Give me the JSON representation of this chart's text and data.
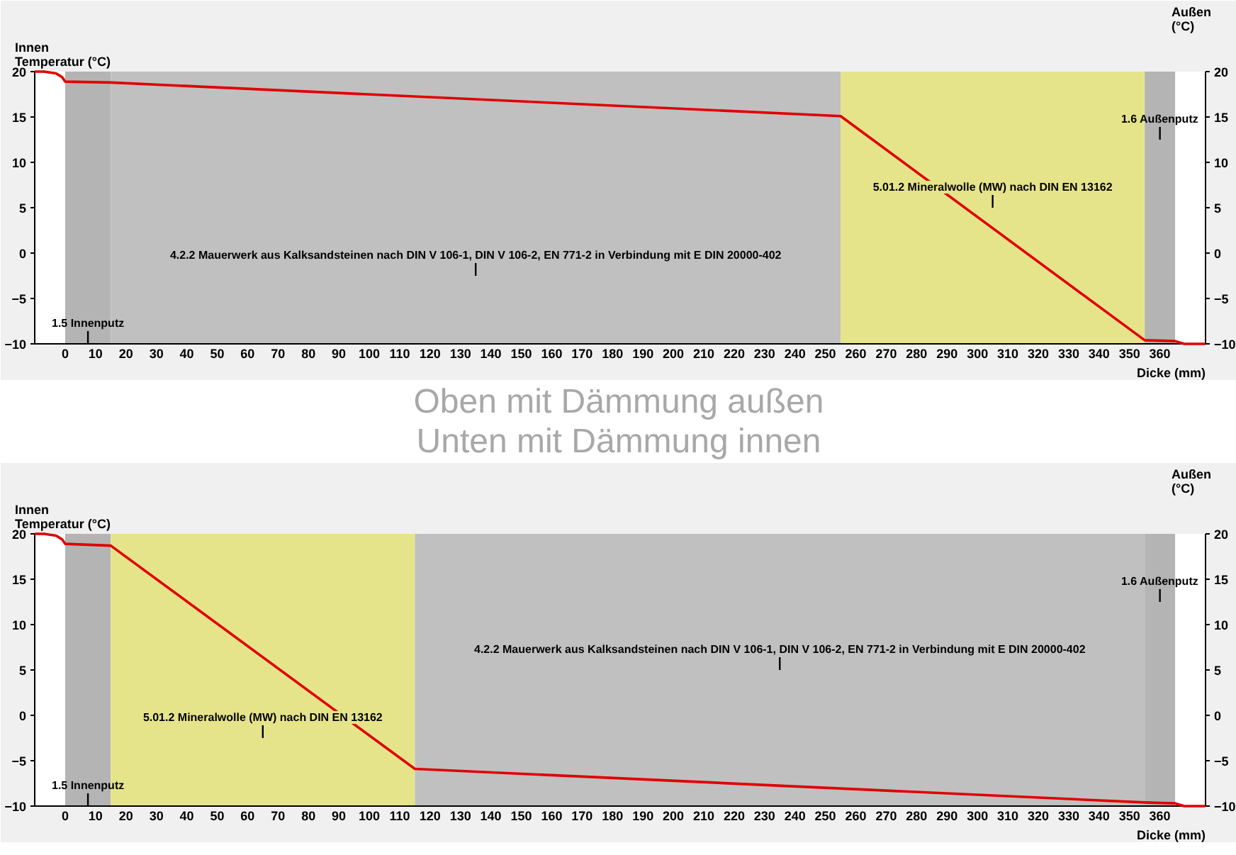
{
  "chart_data": [
    {
      "type": "line",
      "xlim": [
        -10,
        375
      ],
      "xticks": [
        0,
        10,
        20,
        30,
        40,
        50,
        60,
        70,
        80,
        90,
        100,
        110,
        120,
        130,
        140,
        150,
        160,
        170,
        180,
        190,
        200,
        210,
        220,
        230,
        240,
        250,
        260,
        270,
        280,
        290,
        300,
        310,
        320,
        330,
        340,
        350,
        360
      ],
      "ylim": [
        -10,
        20
      ],
      "yticks": [
        -10,
        -5,
        0,
        5,
        10,
        15,
        20
      ],
      "y2lim": [
        -10,
        20
      ],
      "y2ticks": [
        -10,
        -5,
        0,
        5,
        10,
        15,
        20
      ],
      "xlabel": "Dicke (mm)",
      "ylabel": "Innen\nTemperatur (°C)",
      "y2label": "Außen\n(°C)",
      "bands": [
        {
          "axis": "x",
          "from": 0,
          "to": 15,
          "color": "#b4b4b4",
          "label": "1.5 Innenputz"
        },
        {
          "axis": "x",
          "from": 15,
          "to": 255,
          "color": "#c0c0c0",
          "label": "4.2.2 Mauerwerk aus Kalksandsteinen nach DIN V 106-1, DIN V 106-2, EN 771-2 in Verbindung mit E DIN 20000-402"
        },
        {
          "axis": "x",
          "from": 255,
          "to": 355,
          "color": "#e6e48a",
          "label": "5.01.2 Mineralwolle (MW) nach DIN EN 13162"
        },
        {
          "axis": "x",
          "from": 355,
          "to": 365,
          "color": "#b4b4b4",
          "label": "1.6 Außenputz"
        }
      ],
      "series": [
        {
          "color": "#e00000",
          "x": [
            -10,
            -7,
            -5,
            -3,
            -2,
            -1,
            0,
            15,
            255,
            355,
            365,
            366,
            367,
            368,
            375
          ],
          "values": [
            20,
            20,
            19.9,
            19.8,
            19.6,
            19.4,
            18.9,
            18.8,
            15.1,
            -9.6,
            -9.7,
            -9.8,
            -9.9,
            -10,
            -10
          ]
        }
      ]
    },
    {
      "type": "other",
      "annotations": [
        "Oben mit Dämmung außen",
        "Unten mit Dämmung innen"
      ]
    },
    {
      "type": "line",
      "xlim": [
        -10,
        375
      ],
      "xticks": [
        0,
        10,
        20,
        30,
        40,
        50,
        60,
        70,
        80,
        90,
        100,
        110,
        120,
        130,
        140,
        150,
        160,
        170,
        180,
        190,
        200,
        210,
        220,
        230,
        240,
        250,
        260,
        270,
        280,
        290,
        300,
        310,
        320,
        330,
        340,
        350,
        360
      ],
      "ylim": [
        -10,
        20
      ],
      "yticks": [
        -10,
        -5,
        0,
        5,
        10,
        15,
        20
      ],
      "y2lim": [
        -10,
        20
      ],
      "y2ticks": [
        -10,
        -5,
        0,
        5,
        10,
        15,
        20
      ],
      "xlabel": "Dicke (mm)",
      "ylabel": "Innen\nTemperatur (°C)",
      "y2label": "Außen\n(°C)",
      "bands": [
        {
          "axis": "x",
          "from": 0,
          "to": 15,
          "color": "#b4b4b4",
          "label": "1.5 Innenputz"
        },
        {
          "axis": "x",
          "from": 15,
          "to": 115,
          "color": "#e6e48a",
          "label": "5.01.2 Mineralwolle (MW) nach DIN EN 13162"
        },
        {
          "axis": "x",
          "from": 115,
          "to": 355,
          "color": "#c0c0c0",
          "label": "4.2.2 Mauerwerk aus Kalksandsteinen nach DIN V 106-1, DIN V 106-2, EN 771-2 in Verbindung mit E DIN 20000-402"
        },
        {
          "axis": "x",
          "from": 355,
          "to": 365,
          "color": "#b4b4b4",
          "label": "1.6 Außenputz"
        }
      ],
      "series": [
        {
          "color": "#e00000",
          "x": [
            -10,
            -7,
            -5,
            -3,
            -2,
            -1,
            0,
            15,
            115,
            355,
            365,
            366,
            367,
            368,
            375
          ],
          "values": [
            20,
            20,
            19.9,
            19.8,
            19.6,
            19.4,
            18.9,
            18.7,
            -5.9,
            -9.6,
            -9.7,
            -9.8,
            -9.9,
            -10,
            -10
          ]
        }
      ]
    }
  ]
}
